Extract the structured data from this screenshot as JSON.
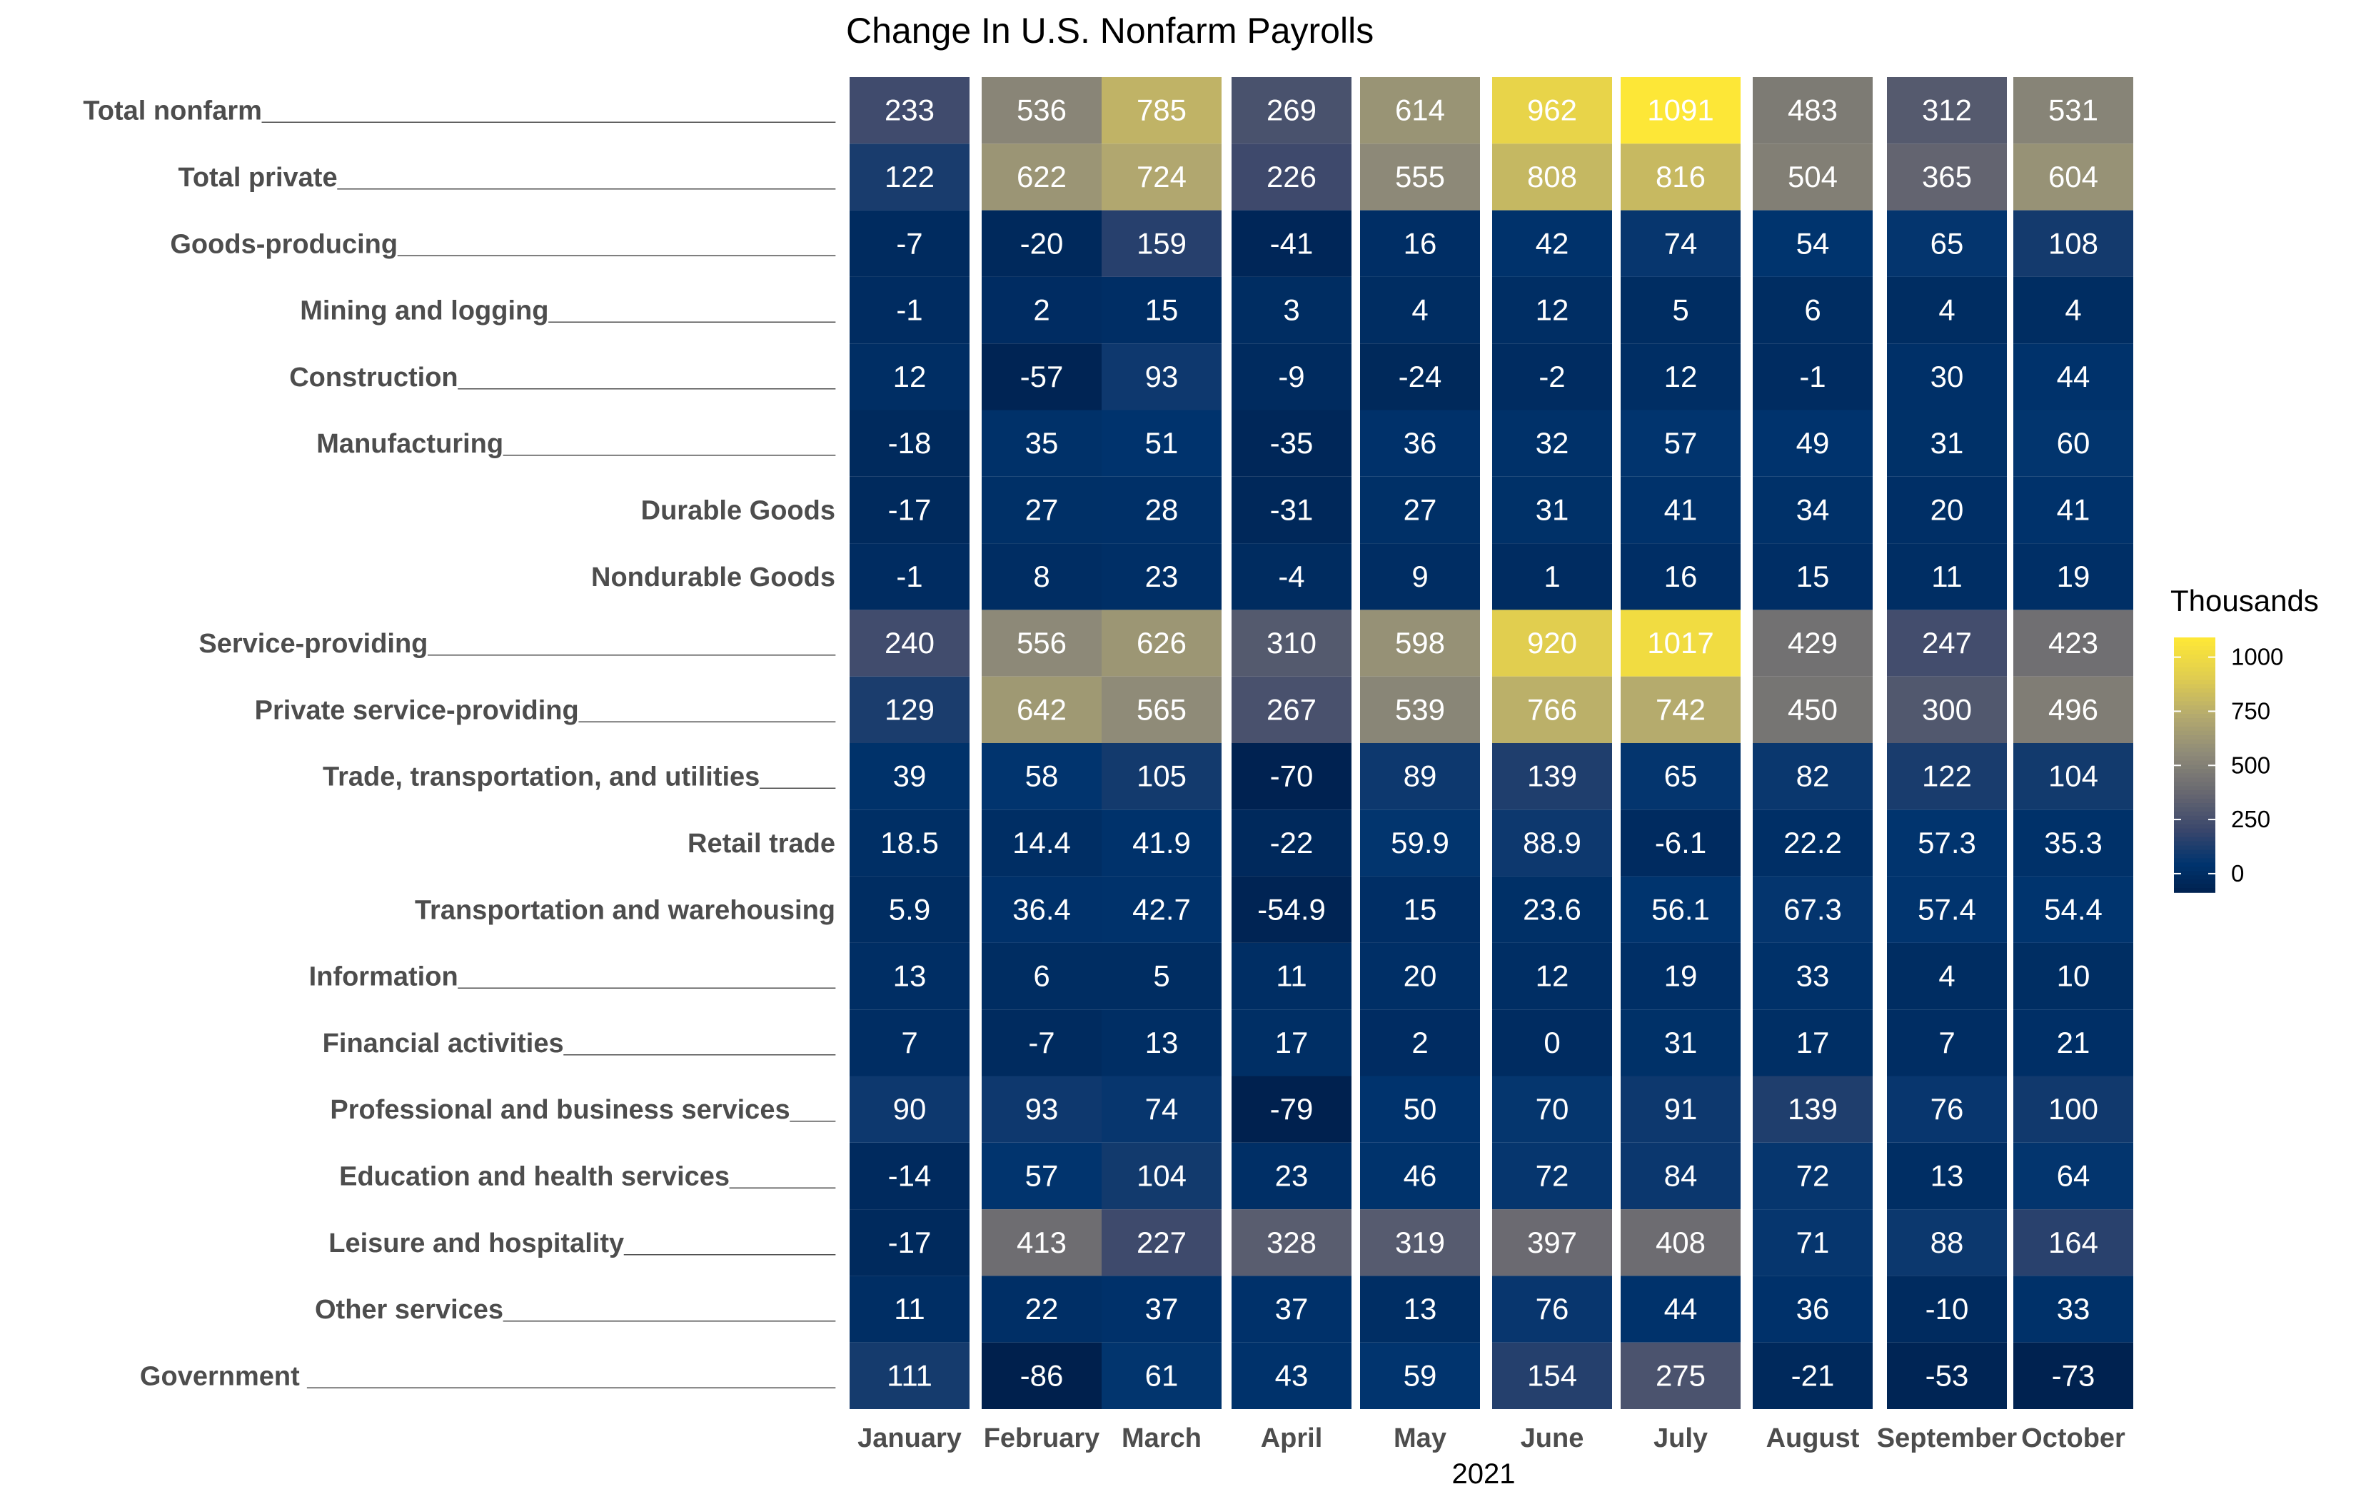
{
  "chart_data": {
    "type": "heatmap",
    "title": "Change In U.S. Nonfarm Payrolls",
    "xlabel": "2021",
    "ylabel": "",
    "columns": [
      "January",
      "February",
      "March",
      "April",
      "May",
      "June",
      "July",
      "August",
      "September",
      "October"
    ],
    "rows": [
      "Total nonfarm______________________________________",
      "Total private_________________________________",
      "Goods-producing_____________________________",
      "Mining and logging___________________",
      "Construction_________________________",
      "Manufacturing______________________",
      "Durable Goods",
      "Nondurable Goods",
      "Service-providing___________________________",
      "Private service-providing_________________",
      "Trade, transportation, and utilities_____",
      "Retail trade",
      "Transportation and warehousing",
      "Information_________________________",
      "Financial activities__________________",
      "Professional and business services___",
      "Education and health services_______",
      "Leisure and hospitality______________",
      "Other services______________________",
      "Government ___________________________________"
    ],
    "values": [
      [
        233,
        536,
        785,
        269,
        614,
        962,
        1091,
        483,
        312,
        531
      ],
      [
        122,
        622,
        724,
        226,
        555,
        808,
        816,
        504,
        365,
        604
      ],
      [
        -7,
        -20,
        159,
        -41,
        16,
        42,
        74,
        54,
        65,
        108
      ],
      [
        -1,
        2,
        15,
        3,
        4,
        12,
        5,
        6,
        4,
        4
      ],
      [
        12,
        -57,
        93,
        -9,
        -24,
        -2,
        12,
        -1,
        30,
        44
      ],
      [
        -18,
        35,
        51,
        -35,
        36,
        32,
        57,
        49,
        31,
        60
      ],
      [
        -17,
        27,
        28,
        -31,
        27,
        31,
        41,
        34,
        20,
        41
      ],
      [
        -1,
        8,
        23,
        -4,
        9,
        1,
        16,
        15,
        11,
        19
      ],
      [
        240,
        556,
        626,
        310,
        598,
        920,
        1017,
        429,
        247,
        423
      ],
      [
        129,
        642,
        565,
        267,
        539,
        766,
        742,
        450,
        300,
        496
      ],
      [
        39,
        58,
        105,
        -70,
        89,
        139,
        65,
        82,
        122,
        104
      ],
      [
        18.5,
        14.4,
        41.9,
        -22,
        59.9,
        88.9,
        -6.1,
        22.2,
        57.3,
        35.3
      ],
      [
        5.9,
        36.4,
        42.7,
        -54.9,
        15,
        23.6,
        56.1,
        67.3,
        57.4,
        54.4
      ],
      [
        13,
        6,
        5,
        11,
        20,
        12,
        19,
        33,
        4,
        10
      ],
      [
        7,
        -7,
        13,
        17,
        2,
        0,
        31,
        17,
        7,
        21
      ],
      [
        90,
        93,
        74,
        -79,
        50,
        70,
        91,
        139,
        76,
        100
      ],
      [
        -14,
        57,
        104,
        23,
        46,
        72,
        84,
        72,
        13,
        64
      ],
      [
        -17,
        413,
        227,
        328,
        319,
        397,
        408,
        71,
        88,
        164
      ],
      [
        11,
        22,
        37,
        37,
        13,
        76,
        44,
        36,
        -10,
        33
      ],
      [
        111,
        -86,
        61,
        43,
        59,
        154,
        275,
        -21,
        -53,
        -73
      ]
    ],
    "colorscale": "cividis",
    "color_range": [
      -86,
      1091
    ],
    "colors": {
      "low": "#00204d",
      "mid": "#7c7b78",
      "high": "#fde737"
    },
    "legend": {
      "title": "Thousands",
      "ticks": [
        0,
        250,
        500,
        750,
        1000
      ],
      "placement": "right"
    }
  }
}
